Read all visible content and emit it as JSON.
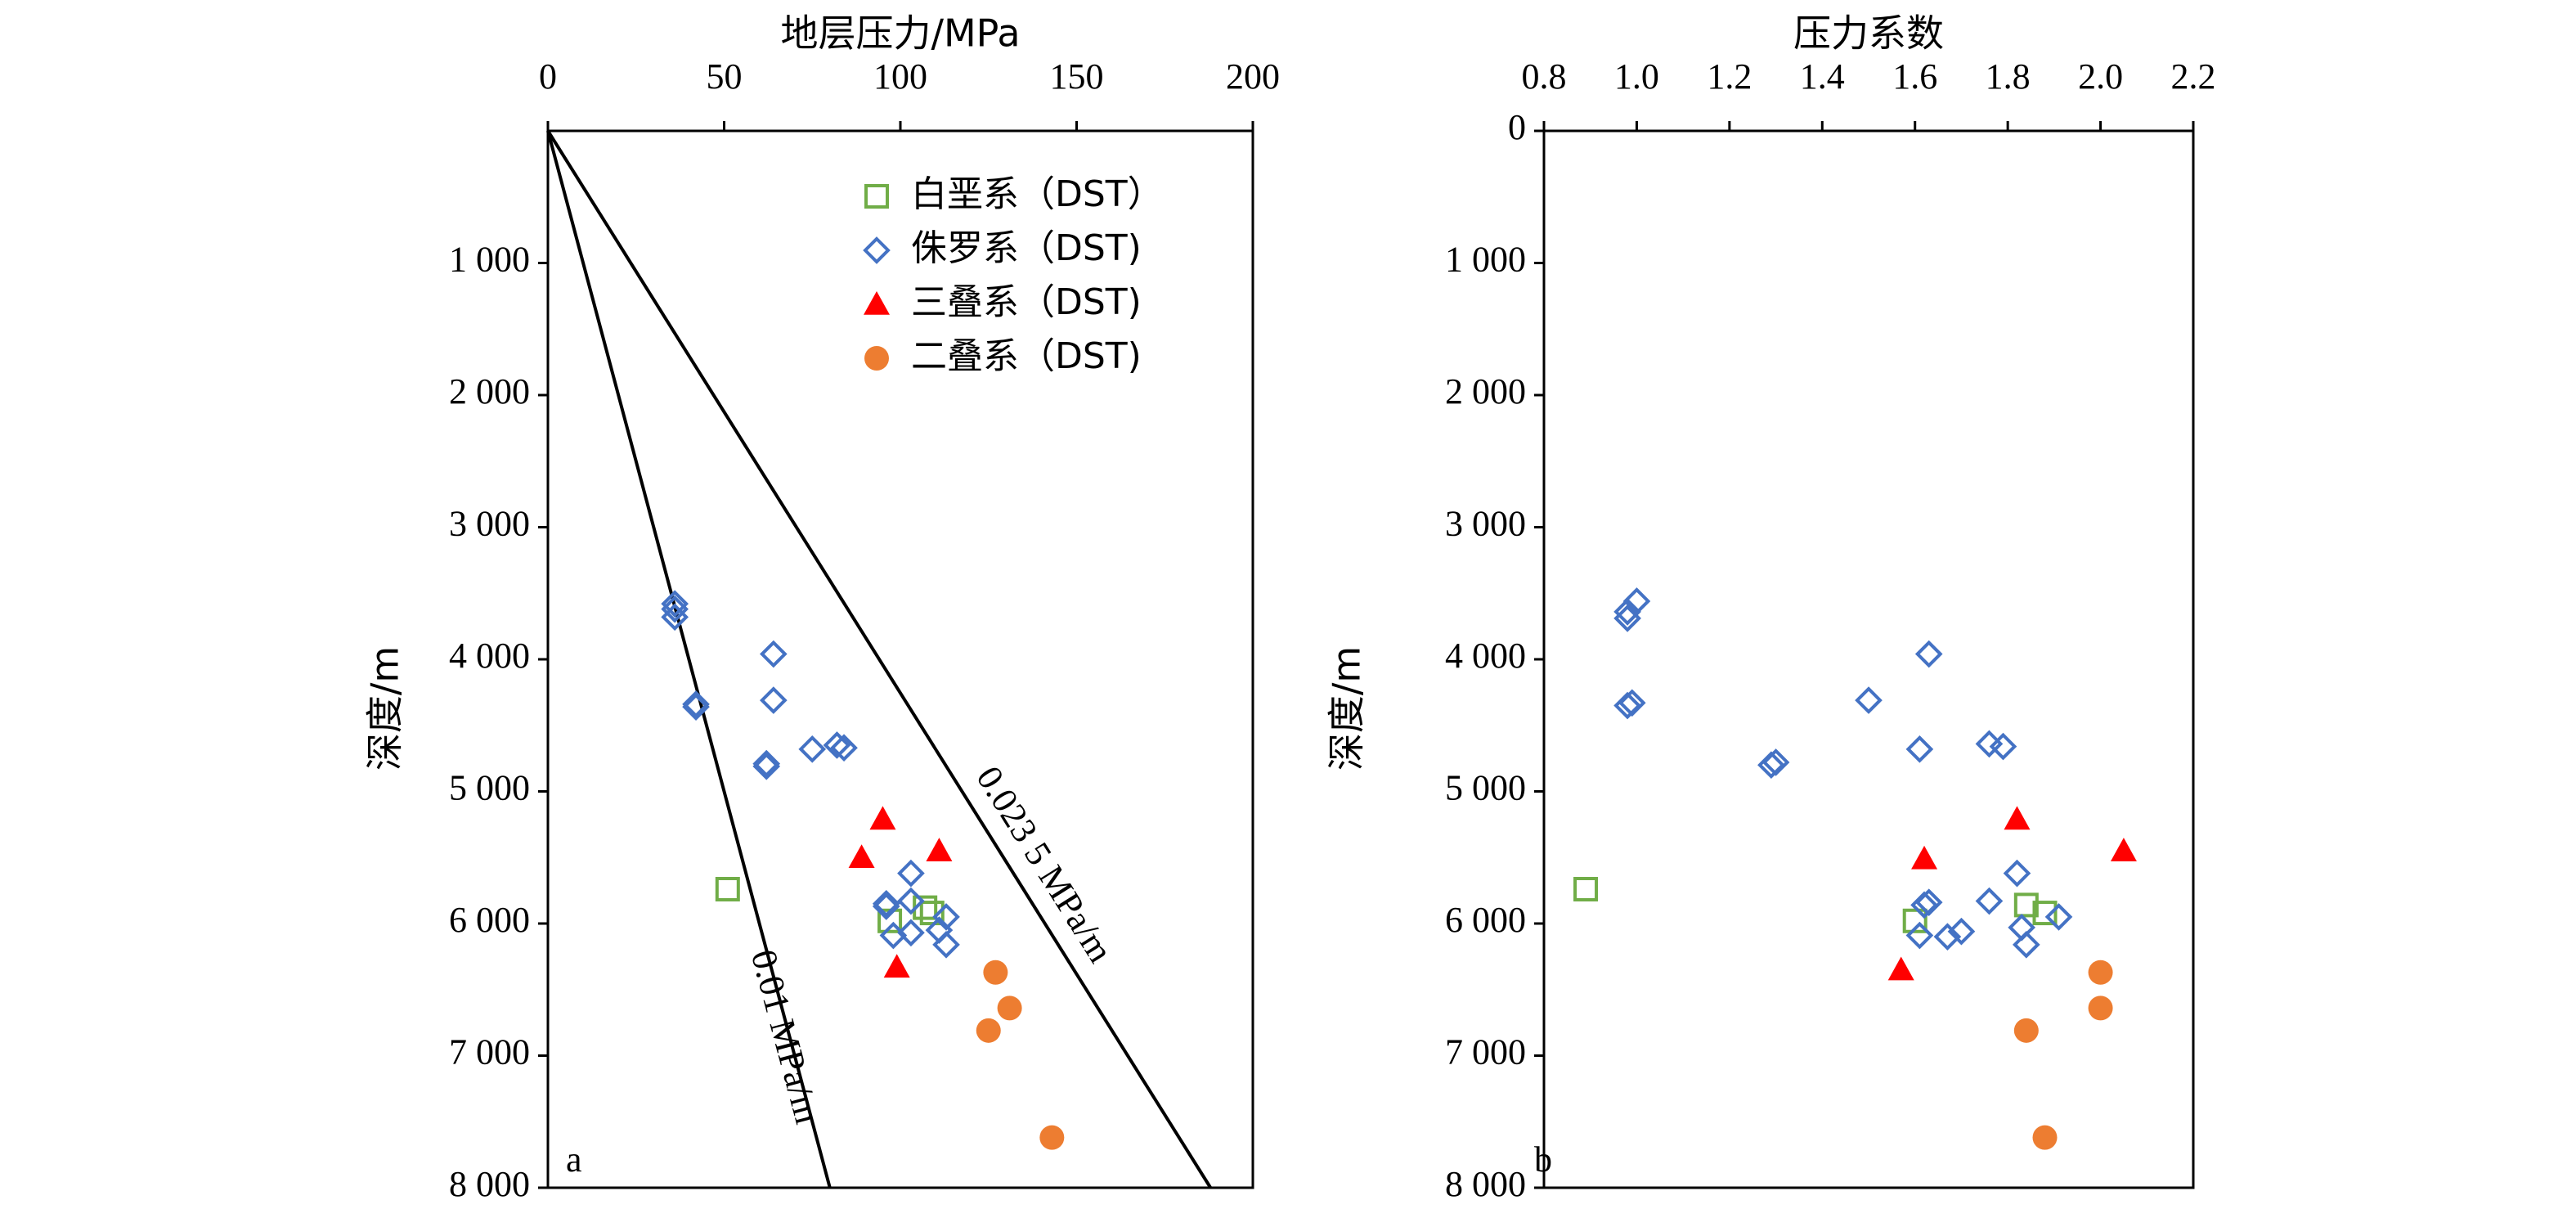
{
  "chart_data": [
    {
      "type": "scatter",
      "panel_label": "a",
      "title": "地层压力/MPa",
      "xlabel": "地层压力/MPa",
      "ylabel": "深度/m",
      "xlim": [
        0,
        200
      ],
      "ylim": [
        0,
        8000
      ],
      "x_ticks": [
        0,
        50,
        100,
        150,
        200
      ],
      "x_tick_labels": [
        "0",
        "50",
        "100",
        "150",
        "200"
      ],
      "y_ticks": [
        1000,
        2000,
        3000,
        4000,
        5000,
        6000,
        7000,
        8000
      ],
      "y_tick_labels": [
        "1 000",
        "2 000",
        "3 000",
        "4 000",
        "5 000",
        "6 000",
        "7 000",
        "8 000"
      ],
      "x_axis_position": "top",
      "y_inverted": true,
      "grid": false,
      "legend_position": "top-right",
      "legend": [
        {
          "label": "白垩系（DST）",
          "marker": "square-open",
          "color": "#70ad47"
        },
        {
          "label": "侏罗系（DST)",
          "marker": "diamond-open",
          "color": "#4472c4"
        },
        {
          "label": "三叠系（DST)",
          "marker": "triangle-filled",
          "color": "#ff0000"
        },
        {
          "label": "二叠系（DST)",
          "marker": "circle-filled",
          "color": "#ed7d31"
        }
      ],
      "reference_lines": [
        {
          "label": "0.01 MPa/m",
          "gradient": 0.01,
          "points": [
            [
              0,
              0
            ],
            [
              80,
              8000
            ]
          ]
        },
        {
          "label": "0.023 5 MPa/m",
          "gradient": 0.0235,
          "points": [
            [
              0,
              0
            ],
            [
              188,
              8000
            ]
          ]
        }
      ],
      "series": [
        {
          "name": "白垩系（DST）",
          "marker": "square-open",
          "color": "#70ad47",
          "points": [
            [
              51,
              5740
            ],
            [
              97,
              5980
            ],
            [
              107,
              5880
            ],
            [
              109,
              5920
            ]
          ]
        },
        {
          "name": "侏罗系（DST)",
          "marker": "diamond-open",
          "color": "#4472c4",
          "points": [
            [
              36,
              3580
            ],
            [
              36,
              3620
            ],
            [
              36,
              3680
            ],
            [
              42,
              4340
            ],
            [
              42,
              4360
            ],
            [
              64,
              3960
            ],
            [
              64,
              4310
            ],
            [
              62,
              4790
            ],
            [
              62,
              4810
            ],
            [
              75,
              4680
            ],
            [
              82,
              4650
            ],
            [
              84,
              4670
            ],
            [
              96,
              5850
            ],
            [
              96,
              5870
            ],
            [
              103,
              5620
            ],
            [
              103,
              5830
            ],
            [
              98,
              6090
            ],
            [
              103,
              6070
            ],
            [
              111,
              6050
            ],
            [
              113,
              5950
            ],
            [
              113,
              6160
            ]
          ]
        },
        {
          "name": "三叠系（DST)",
          "marker": "triangle-filled",
          "color": "#ff0000",
          "points": [
            [
              95,
              5210
            ],
            [
              111,
              5450
            ],
            [
              89,
              5500
            ],
            [
              99,
              6330
            ]
          ]
        },
        {
          "name": "二叠系（DST)",
          "marker": "circle-filled",
          "color": "#ed7d31",
          "points": [
            [
              127,
              6370
            ],
            [
              131,
              6640
            ],
            [
              125,
              6810
            ],
            [
              143,
              7620
            ]
          ]
        }
      ]
    },
    {
      "type": "scatter",
      "panel_label": "b",
      "title": "压力系数",
      "xlabel": "压力系数",
      "ylabel": "深度/m",
      "xlim": [
        0.8,
        2.2
      ],
      "ylim": [
        0,
        8000
      ],
      "x_ticks": [
        0.8,
        1.0,
        1.2,
        1.4,
        1.6,
        1.8,
        2.0,
        2.2
      ],
      "x_tick_labels": [
        "0.8",
        "1.0",
        "1.2",
        "1.4",
        "1.6",
        "1.8",
        "2.0",
        "2.2"
      ],
      "y_ticks": [
        0,
        1000,
        2000,
        3000,
        4000,
        5000,
        6000,
        7000,
        8000
      ],
      "y_tick_labels": [
        "0",
        "1 000",
        "2 000",
        "3 000",
        "4 000",
        "5 000",
        "6 000",
        "7 000",
        "8 000"
      ],
      "x_axis_position": "top",
      "y_inverted": true,
      "grid": false,
      "series": [
        {
          "name": "白垩系（DST）",
          "marker": "square-open",
          "color": "#70ad47",
          "points": [
            [
              0.89,
              5740
            ],
            [
              1.6,
              5980
            ],
            [
              1.84,
              5860
            ],
            [
              1.88,
              5920
            ]
          ]
        },
        {
          "name": "侏罗系（DST)",
          "marker": "diamond-open",
          "color": "#4472c4",
          "points": [
            [
              1.0,
              3560
            ],
            [
              0.98,
              3640
            ],
            [
              0.98,
              3690
            ],
            [
              0.98,
              4350
            ],
            [
              0.99,
              4330
            ],
            [
              1.63,
              3960
            ],
            [
              1.5,
              4310
            ],
            [
              1.29,
              4800
            ],
            [
              1.3,
              4780
            ],
            [
              1.61,
              4680
            ],
            [
              1.76,
              4640
            ],
            [
              1.79,
              4660
            ],
            [
              1.82,
              5620
            ],
            [
              1.62,
              5860
            ],
            [
              1.63,
              5840
            ],
            [
              1.76,
              5830
            ],
            [
              1.61,
              6090
            ],
            [
              1.67,
              6100
            ],
            [
              1.7,
              6060
            ],
            [
              1.83,
              6030
            ],
            [
              1.84,
              6160
            ],
            [
              1.91,
              5950
            ]
          ]
        },
        {
          "name": "三叠系（DST)",
          "marker": "triangle-filled",
          "color": "#ff0000",
          "points": [
            [
              1.82,
              5210
            ],
            [
              1.62,
              5510
            ],
            [
              2.05,
              5450
            ],
            [
              1.57,
              6350
            ]
          ]
        },
        {
          "name": "二叠系（DST)",
          "marker": "circle-filled",
          "color": "#ed7d31",
          "points": [
            [
              2.0,
              6370
            ],
            [
              2.0,
              6640
            ],
            [
              1.84,
              6810
            ],
            [
              1.88,
              7620
            ]
          ]
        }
      ]
    }
  ]
}
